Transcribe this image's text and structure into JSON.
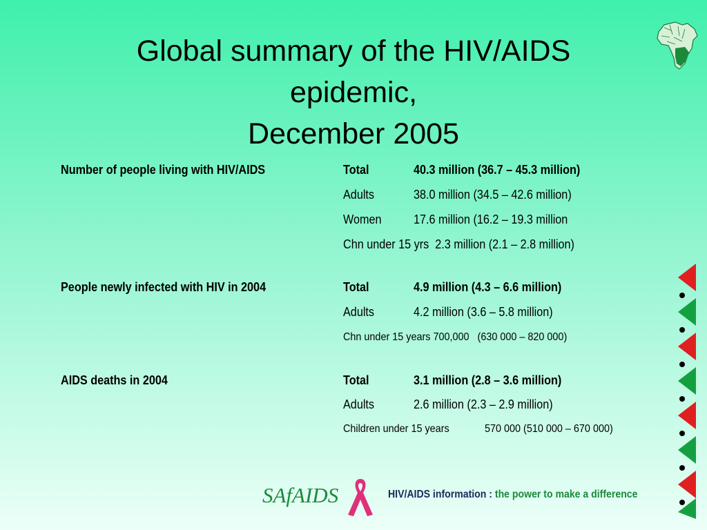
{
  "slide": {
    "title_lines": [
      "Global summary of the HIV/AIDS",
      "epidemic,",
      "December 2005"
    ]
  },
  "sections": [
    {
      "heading": "Number of people living with HIV/AIDS",
      "rows": [
        {
          "category": "Total",
          "value": "40.3 million (36.7 – 45.3 million)",
          "bold": true
        },
        {
          "category": "Adults",
          "value": "38.0 million (34.5 – 42.6 million)"
        },
        {
          "category": "Women",
          "value": "17.6 million (16.2 – 19.3 million"
        },
        {
          "combined": "Chn under 15 yrs  2.3 million (2.1 – 2.8 million)"
        }
      ]
    },
    {
      "heading": "People newly infected with HIV in 2004",
      "rows": [
        {
          "category": "Total",
          "value": "4.9 million (4.3 – 6.6 million)",
          "bold": true
        },
        {
          "category": "Adults",
          "value": "4.2 million (3.6 – 5.8 million)"
        },
        {
          "combined": "Chn under 15 years 700,000   (630 000 – 820 000)"
        }
      ]
    },
    {
      "heading": "AIDS deaths in 2004",
      "rows": [
        {
          "category": "Total",
          "value": "3.1 million (2.8 – 3.6 million)",
          "bold": true
        },
        {
          "category": "Adults",
          "value": "2.6 million (2.3 – 2.9 million)"
        },
        {
          "combined_a": "Children under 15 years",
          "combined_b": "570 000 (510 000 – 670 000)"
        }
      ]
    }
  ],
  "footer": {
    "brand": "SAfAIDS",
    "tagline_lead": "HIV/AIDS information :",
    "tagline_rest": "the power to make a difference"
  },
  "colors": {
    "background_top": "#3ff0ab",
    "background_bottom": "#ecfff8",
    "accent_red": "#e02020",
    "accent_green": "#15a040",
    "ribbon_pink": "#e0307a",
    "brand_green": "#1a8a3a"
  },
  "icons": {
    "map": "africa-map-icon",
    "ribbon": "awareness-ribbon-icon"
  }
}
